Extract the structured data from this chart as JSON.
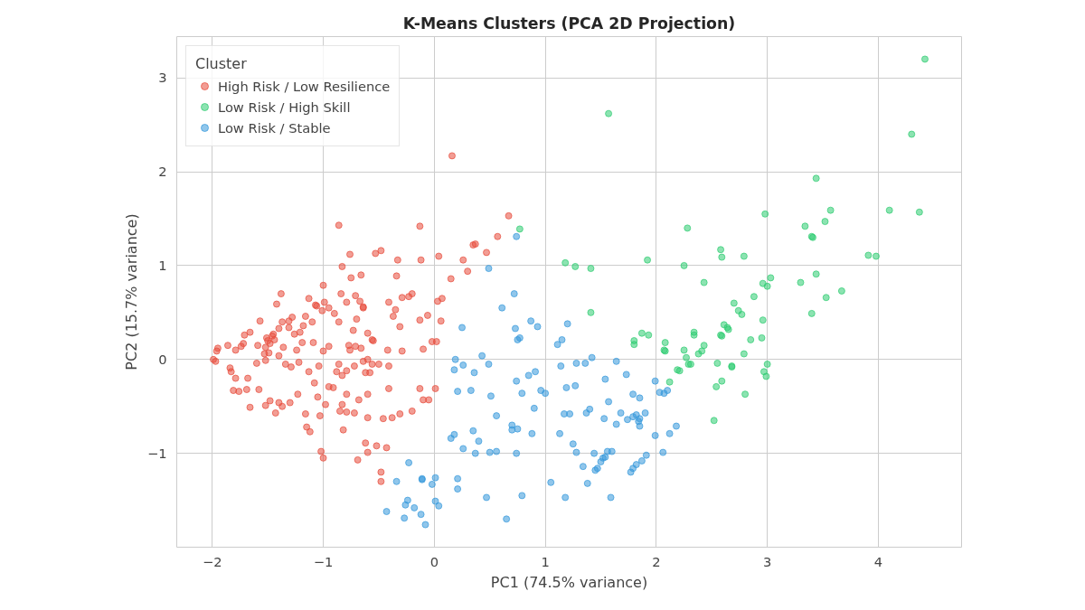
{
  "chart_data": {
    "type": "scatter",
    "title": "K-Means Clusters (PCA 2D Projection)",
    "xlabel": "PC1 (74.5% variance)",
    "ylabel": "PC2 (15.7% variance)",
    "legend_title": "Cluster",
    "legend": "top left",
    "grid": true,
    "marker": "circle",
    "xlim": [
      -2.32,
      4.75
    ],
    "ylim": [
      -2.0,
      3.44
    ],
    "xticks": [
      -2,
      -1,
      0,
      1,
      2,
      3,
      4
    ],
    "yticks": [
      -1,
      0,
      1,
      2,
      3
    ],
    "series": [
      {
        "name": "High Risk / Low Resilience",
        "color": "#e74c3c",
        "x": [
          0.16,
          0.67,
          0.57,
          -0.13,
          -0.86,
          0.35,
          0.37,
          0.47,
          0.26,
          0.04,
          -0.12,
          -0.76,
          -0.53,
          -0.48,
          -0.33,
          -0.83,
          -0.75,
          -0.66,
          -0.34,
          0.15,
          0.3,
          -0.41,
          0.07,
          0.03,
          -0.06,
          -0.13,
          0.06,
          -0.37,
          -0.2,
          -0.23,
          -0.29,
          -0.1,
          -0.02,
          0.02,
          -0.13,
          -0.1,
          -0.05,
          0.01,
          -0.41,
          -0.2,
          -0.31,
          -0.38,
          -0.46,
          -0.43,
          -0.52,
          -0.62,
          -0.69,
          -0.6,
          -0.48,
          -0.48,
          -0.82,
          -0.85,
          -1.0,
          -1.02,
          -1.15,
          -1.12,
          -1.03,
          -0.98,
          -0.83,
          -0.72,
          -0.79,
          -0.91,
          -0.62,
          -0.6,
          -0.56,
          -0.41,
          -0.42,
          -0.55,
          -0.66,
          -0.71,
          -0.76,
          -1.3,
          -1.4,
          -1.48,
          -1.52,
          -1.43,
          -1.37,
          -1.58,
          -1.69,
          -1.76,
          -1.83,
          -1.79,
          -1.84,
          -1.97,
          -1.99,
          -1.96,
          -1.95,
          -1.86,
          -1.79,
          -1.72,
          -1.66,
          -1.71,
          -1.74,
          -1.59,
          -1.51,
          -1.5,
          -1.48,
          -1.46,
          -1.44,
          -1.52,
          -1.49,
          -1.4,
          -1.37,
          -1.31,
          -1.28,
          -1.31,
          -1.26,
          -1.21,
          -1.18,
          -1.16,
          -1.1,
          -1.06,
          -1.13,
          -1.07,
          -1.01,
          -0.99,
          -0.95,
          -0.9,
          -0.86,
          -0.84,
          -0.79,
          -0.71,
          -0.64,
          -0.7,
          -0.73,
          -0.77,
          -1.24,
          -1.19,
          -1.09,
          -1.0,
          -0.95,
          -1.36,
          -1.4,
          -1.6,
          -1.52,
          -1.34,
          -1.29,
          -1.22,
          -1.13,
          -1.04,
          -0.88,
          -0.83,
          -0.72,
          -0.64,
          -0.58,
          -1.68,
          -1.81,
          -1.66,
          -1.53,
          -1.45,
          -1.57,
          -1.42,
          -1.38,
          -1.0,
          -0.95,
          -1.23,
          -1.08,
          -1.05,
          -1.16,
          -0.86,
          -0.6,
          -0.5,
          -0.31,
          -0.29,
          -0.79,
          -0.68,
          -0.79,
          -0.6,
          -0.35,
          -0.56,
          -0.6,
          -0.67,
          -0.64
        ],
        "values": [
          2.17,
          1.53,
          1.31,
          1.42,
          1.43,
          1.22,
          1.23,
          1.14,
          1.06,
          1.1,
          1.06,
          1.12,
          1.13,
          1.16,
          1.06,
          0.99,
          0.87,
          0.9,
          0.89,
          0.86,
          0.94,
          0.61,
          0.65,
          0.62,
          0.47,
          0.42,
          0.41,
          0.46,
          0.7,
          0.67,
          0.66,
          0.11,
          0.19,
          0.19,
          -0.31,
          -0.43,
          -0.43,
          -0.31,
          -0.31,
          -0.55,
          -0.58,
          -0.62,
          -0.63,
          -0.94,
          -0.92,
          -0.89,
          -1.07,
          -0.99,
          -1.3,
          -1.2,
          -0.75,
          -0.55,
          -1.05,
          -0.98,
          -0.72,
          -0.77,
          -0.6,
          -0.48,
          -0.48,
          -0.57,
          -0.37,
          -0.3,
          -0.14,
          -0.37,
          -0.05,
          -0.07,
          0.1,
          0.2,
          0.12,
          0.14,
          0.1,
          -0.46,
          -0.46,
          -0.44,
          -0.49,
          -0.57,
          -0.5,
          -0.32,
          -0.32,
          -0.34,
          -0.13,
          -0.2,
          -0.09,
          -0.02,
          0.0,
          0.09,
          0.12,
          0.15,
          0.1,
          0.17,
          0.29,
          0.26,
          0.14,
          0.15,
          0.23,
          0.2,
          0.17,
          0.25,
          0.21,
          0.13,
          0.07,
          0.33,
          0.4,
          0.41,
          0.45,
          0.34,
          0.27,
          0.29,
          0.36,
          0.46,
          0.4,
          0.57,
          0.65,
          0.58,
          0.52,
          0.61,
          0.55,
          0.49,
          0.4,
          0.7,
          0.61,
          0.68,
          0.55,
          0.43,
          0.31,
          0.15,
          0.1,
          0.18,
          0.18,
          0.09,
          0.14,
          0.13,
          0.04,
          -0.04,
          -0.01,
          -0.05,
          -0.08,
          -0.03,
          -0.13,
          -0.07,
          -0.13,
          -0.17,
          -0.07,
          -0.02,
          -0.14,
          -0.2,
          -0.33,
          -0.51,
          0.06,
          0.27,
          0.41,
          0.59,
          0.7,
          0.79,
          -0.29,
          -0.37,
          -0.25,
          -0.4,
          -0.58,
          -0.05,
          0.0,
          -0.05,
          0.35,
          0.09,
          -0.12,
          -0.43,
          -0.56,
          -0.62,
          0.53,
          0.21,
          0.28,
          0.62,
          0.56
        ]
      },
      {
        "name": "Low Risk / High Skill",
        "color": "#2ecc71",
        "x": [
          4.42,
          4.3,
          1.57,
          3.44,
          4.37,
          4.1,
          3.57,
          3.52,
          3.34,
          3.4,
          3.41,
          3.91,
          3.98,
          2.98,
          2.28,
          2.58,
          2.59,
          2.79,
          1.92,
          2.25,
          1.18,
          1.27,
          1.41,
          0.77,
          3.03,
          3.0,
          2.96,
          3.44,
          3.3,
          3.53,
          3.67,
          3.4,
          2.43,
          2.88,
          2.7,
          2.74,
          2.77,
          2.96,
          2.61,
          2.64,
          2.65,
          2.85,
          2.95,
          2.34,
          2.34,
          2.07,
          2.08,
          2.58,
          2.59,
          2.43,
          2.41,
          2.38,
          2.25,
          2.27,
          2.79,
          1.8,
          1.8,
          1.87,
          1.93,
          2.08,
          2.12,
          2.19,
          2.21,
          2.29,
          2.31,
          2.68,
          2.68,
          2.55,
          2.54,
          2.59,
          2.8,
          2.52,
          2.97,
          2.99,
          3.0,
          1.41
        ],
        "values": [
          3.2,
          2.4,
          2.62,
          1.93,
          1.57,
          1.59,
          1.59,
          1.47,
          1.42,
          1.31,
          1.3,
          1.11,
          1.1,
          1.55,
          1.4,
          1.17,
          1.09,
          1.1,
          1.06,
          1.0,
          1.03,
          0.99,
          0.97,
          1.39,
          0.87,
          0.78,
          0.81,
          0.91,
          0.82,
          0.66,
          0.73,
          0.49,
          0.82,
          0.67,
          0.6,
          0.52,
          0.48,
          0.42,
          0.37,
          0.34,
          0.32,
          0.21,
          0.23,
          0.29,
          0.26,
          0.1,
          0.09,
          0.26,
          0.25,
          0.15,
          0.09,
          0.06,
          0.1,
          0.02,
          0.06,
          0.2,
          0.16,
          0.28,
          0.26,
          0.18,
          -0.24,
          -0.11,
          -0.12,
          -0.05,
          -0.05,
          -0.08,
          -0.07,
          -0.04,
          -0.29,
          -0.23,
          -0.37,
          -0.65,
          -0.13,
          -0.18,
          -0.05,
          0.5
        ]
      },
      {
        "name": "Low Risk / Stable",
        "color": "#3498db",
        "x": [
          0.74,
          0.49,
          0.72,
          0.61,
          0.25,
          0.73,
          0.77,
          0.75,
          0.87,
          0.93,
          1.2,
          1.15,
          1.11,
          1.42,
          1.64,
          1.28,
          1.36,
          1.14,
          0.91,
          0.85,
          0.49,
          0.43,
          0.26,
          0.18,
          0.36,
          0.19,
          0.51,
          0.21,
          0.33,
          0.74,
          0.79,
          0.96,
          0.9,
          1.0,
          1.19,
          1.27,
          1.17,
          1.22,
          1.37,
          1.4,
          1.54,
          1.57,
          1.79,
          1.85,
          1.99,
          1.73,
          2.03,
          2.07,
          2.1,
          2.18,
          1.9,
          1.82,
          1.68,
          1.74,
          1.64,
          1.79,
          1.85,
          1.84,
          1.85,
          1.53,
          2.12,
          2.06,
          1.99,
          1.91,
          1.87,
          1.82,
          1.79,
          1.77,
          1.6,
          1.56,
          1.54,
          1.52,
          1.5,
          1.47,
          1.45,
          1.34,
          1.44,
          1.38,
          1.59,
          1.18,
          1.28,
          1.25,
          1.05,
          0.79,
          0.65,
          0.75,
          0.7,
          0.7,
          0.56,
          0.5,
          0.56,
          0.74,
          0.47,
          0.4,
          0.35,
          0.26,
          0.18,
          0.15,
          0.37,
          0.21,
          0.21,
          0.01,
          -0.02,
          -0.11,
          -0.11,
          -0.23,
          -0.34,
          -0.43,
          -0.24,
          -0.26,
          -0.18,
          -0.12,
          -0.08,
          -0.27,
          0.01,
          0.04,
          0.88,
          1.13
        ],
        "values": [
          1.31,
          0.97,
          0.7,
          0.55,
          0.34,
          0.33,
          0.23,
          0.21,
          0.41,
          0.35,
          0.38,
          0.21,
          0.16,
          0.02,
          -0.02,
          -0.04,
          -0.04,
          -0.07,
          -0.13,
          -0.17,
          -0.05,
          0.04,
          -0.06,
          -0.11,
          -0.14,
          0.0,
          -0.39,
          -0.34,
          -0.33,
          -0.23,
          -0.36,
          -0.33,
          -0.52,
          -0.36,
          -0.3,
          -0.28,
          -0.58,
          -0.58,
          -0.57,
          -0.53,
          -0.21,
          -0.45,
          -0.37,
          -0.41,
          -0.23,
          -0.16,
          -0.35,
          -0.36,
          -0.33,
          -0.71,
          -0.57,
          -0.59,
          -0.57,
          -0.64,
          -0.69,
          -0.61,
          -0.63,
          -0.66,
          -0.71,
          -0.63,
          -0.79,
          -0.99,
          -0.81,
          -1.02,
          -1.08,
          -1.12,
          -1.16,
          -1.2,
          -0.98,
          -0.98,
          -1.04,
          -1.05,
          -1.09,
          -1.16,
          -1.18,
          -1.14,
          -1.0,
          -1.32,
          -1.47,
          -1.47,
          -0.99,
          -0.9,
          -1.31,
          -1.45,
          -1.7,
          -0.74,
          -0.7,
          -0.75,
          -0.6,
          -0.99,
          -0.98,
          -1.0,
          -1.47,
          -0.87,
          -0.76,
          -0.95,
          -0.8,
          -0.84,
          -1.0,
          -1.27,
          -1.38,
          -1.26,
          -1.33,
          -1.27,
          -1.28,
          -1.1,
          -1.3,
          -1.62,
          -1.5,
          -1.55,
          -1.58,
          -1.65,
          -1.76,
          -1.69,
          -1.51,
          -1.56,
          -0.79,
          -0.79
        ]
      }
    ]
  }
}
